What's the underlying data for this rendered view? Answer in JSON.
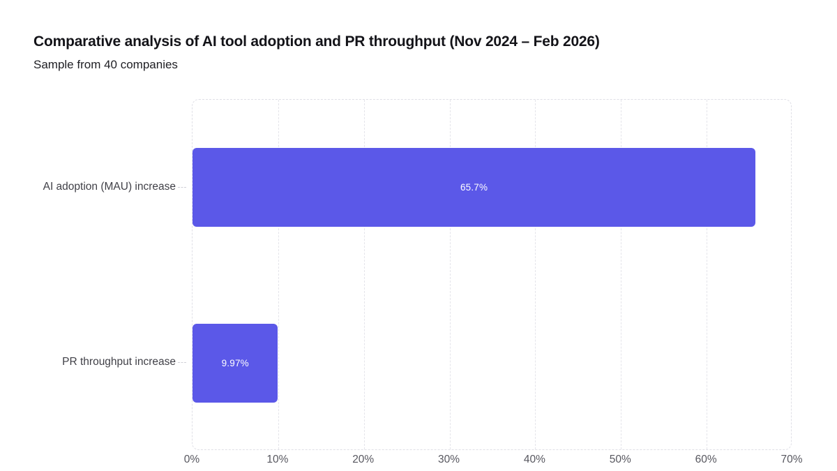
{
  "header": {
    "title": "Comparative analysis of AI tool adoption and PR throughput (Nov 2024 – Feb 2026)",
    "subtitle": "Sample from 40 companies"
  },
  "chart_data": {
    "type": "bar",
    "orientation": "horizontal",
    "title": "Comparative analysis of AI tool adoption and PR throughput (Nov 2024 – Feb 2026)",
    "subtitle": "Sample from 40 companies",
    "categories": [
      "AI adoption (MAU) increase",
      "PR throughput increase"
    ],
    "values": [
      65.7,
      9.97
    ],
    "value_labels": [
      "65.7%",
      "9.97%"
    ],
    "x_tick_values": [
      0,
      10,
      20,
      30,
      40,
      50,
      60,
      70
    ],
    "x_tick_labels": [
      "0%",
      "10%",
      "20%",
      "30%",
      "40%",
      "50%",
      "60%",
      "70%"
    ],
    "xlim": [
      0,
      70
    ],
    "grid": "vertical-dashed",
    "legend": "none",
    "colors": {
      "bar": "#5b58e8",
      "value_label": "#ffffff",
      "grid": "#e4e4ea",
      "plot_border": "#dfdfe6",
      "title_text": "#131318",
      "axis_text": "#57575f",
      "category_text": "#3f3f46"
    }
  }
}
